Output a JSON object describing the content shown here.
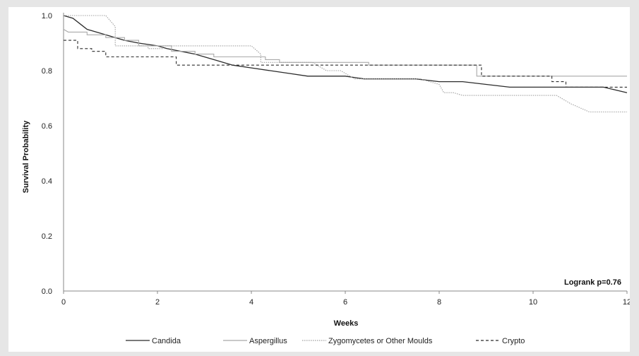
{
  "chart_data": {
    "type": "line",
    "xlabel": "Weeks",
    "ylabel": "Survival Probability",
    "xlim": [
      0,
      12
    ],
    "ylim": [
      0,
      1.0
    ],
    "x_ticks": [
      "0",
      "2",
      "4",
      "6",
      "8",
      "10",
      "12"
    ],
    "y_ticks": [
      "0.0",
      "0.2",
      "0.4",
      "0.6",
      "0.8",
      "1.0"
    ],
    "grid": false,
    "legend_position": "bottom",
    "annotation": "Logrank p=0.76",
    "series": [
      {
        "name": "Candida",
        "color": "#2b2b2b",
        "dash": "solid",
        "points": [
          [
            0,
            1.0
          ],
          [
            0.2,
            0.99
          ],
          [
            0.35,
            0.97
          ],
          [
            0.5,
            0.95
          ],
          [
            0.7,
            0.94
          ],
          [
            0.9,
            0.93
          ],
          [
            1.1,
            0.92
          ],
          [
            1.3,
            0.91
          ],
          [
            1.6,
            0.9
          ],
          [
            2.0,
            0.89
          ],
          [
            2.2,
            0.88
          ],
          [
            2.5,
            0.87
          ],
          [
            2.8,
            0.86
          ],
          [
            3.2,
            0.84
          ],
          [
            3.6,
            0.82
          ],
          [
            4.0,
            0.81
          ],
          [
            4.4,
            0.8
          ],
          [
            4.8,
            0.79
          ],
          [
            5.2,
            0.78
          ],
          [
            5.6,
            0.78
          ],
          [
            6.0,
            0.78
          ],
          [
            6.4,
            0.77
          ],
          [
            7.0,
            0.77
          ],
          [
            7.5,
            0.77
          ],
          [
            8.0,
            0.76
          ],
          [
            8.5,
            0.76
          ],
          [
            9.0,
            0.75
          ],
          [
            9.5,
            0.74
          ],
          [
            10.0,
            0.74
          ],
          [
            10.5,
            0.74
          ],
          [
            11.0,
            0.74
          ],
          [
            11.5,
            0.74
          ],
          [
            12.0,
            0.72
          ]
        ]
      },
      {
        "name": "Aspergillus",
        "color": "#a9a9a9",
        "dash": "solid",
        "points": [
          [
            0,
            0.95
          ],
          [
            0.1,
            0.94
          ],
          [
            0.5,
            0.94
          ],
          [
            0.5,
            0.93
          ],
          [
            0.9,
            0.93
          ],
          [
            0.9,
            0.92
          ],
          [
            1.3,
            0.92
          ],
          [
            1.3,
            0.91
          ],
          [
            1.6,
            0.91
          ],
          [
            1.6,
            0.89
          ],
          [
            2.3,
            0.89
          ],
          [
            2.3,
            0.87
          ],
          [
            2.8,
            0.87
          ],
          [
            2.8,
            0.86
          ],
          [
            3.2,
            0.86
          ],
          [
            3.2,
            0.85
          ],
          [
            4.3,
            0.85
          ],
          [
            4.3,
            0.84
          ],
          [
            4.6,
            0.84
          ],
          [
            4.6,
            0.83
          ],
          [
            6.5,
            0.83
          ],
          [
            6.5,
            0.82
          ],
          [
            8.8,
            0.82
          ],
          [
            8.8,
            0.78
          ],
          [
            12.0,
            0.78
          ]
        ]
      },
      {
        "name": "Zygomycetes or Other Moulds",
        "color": "#a0a0a0",
        "dash": "dotted",
        "points": [
          [
            0,
            1.0
          ],
          [
            0.9,
            1.0
          ],
          [
            1.1,
            0.96
          ],
          [
            1.1,
            0.89
          ],
          [
            1.8,
            0.89
          ],
          [
            1.8,
            0.88
          ],
          [
            2.1,
            0.88
          ],
          [
            2.1,
            0.89
          ],
          [
            4.0,
            0.89
          ],
          [
            4.2,
            0.86
          ],
          [
            4.2,
            0.83
          ],
          [
            5.3,
            0.83
          ],
          [
            5.6,
            0.8
          ],
          [
            5.9,
            0.8
          ],
          [
            6.2,
            0.77
          ],
          [
            7.6,
            0.77
          ],
          [
            8.0,
            0.75
          ],
          [
            8.1,
            0.72
          ],
          [
            8.3,
            0.72
          ],
          [
            8.5,
            0.71
          ],
          [
            10.5,
            0.71
          ],
          [
            10.8,
            0.68
          ],
          [
            11.2,
            0.65
          ],
          [
            12.0,
            0.65
          ]
        ]
      },
      {
        "name": "Crypto",
        "color": "#2b2b2b",
        "dash": "dashed",
        "points": [
          [
            0,
            0.91
          ],
          [
            0.3,
            0.91
          ],
          [
            0.3,
            0.88
          ],
          [
            0.6,
            0.88
          ],
          [
            0.6,
            0.87
          ],
          [
            0.9,
            0.87
          ],
          [
            0.9,
            0.85
          ],
          [
            2.4,
            0.85
          ],
          [
            2.4,
            0.82
          ],
          [
            8.9,
            0.82
          ],
          [
            8.9,
            0.78
          ],
          [
            10.4,
            0.78
          ],
          [
            10.4,
            0.76
          ],
          [
            10.7,
            0.76
          ],
          [
            10.7,
            0.74
          ],
          [
            12.0,
            0.74
          ]
        ]
      }
    ]
  }
}
